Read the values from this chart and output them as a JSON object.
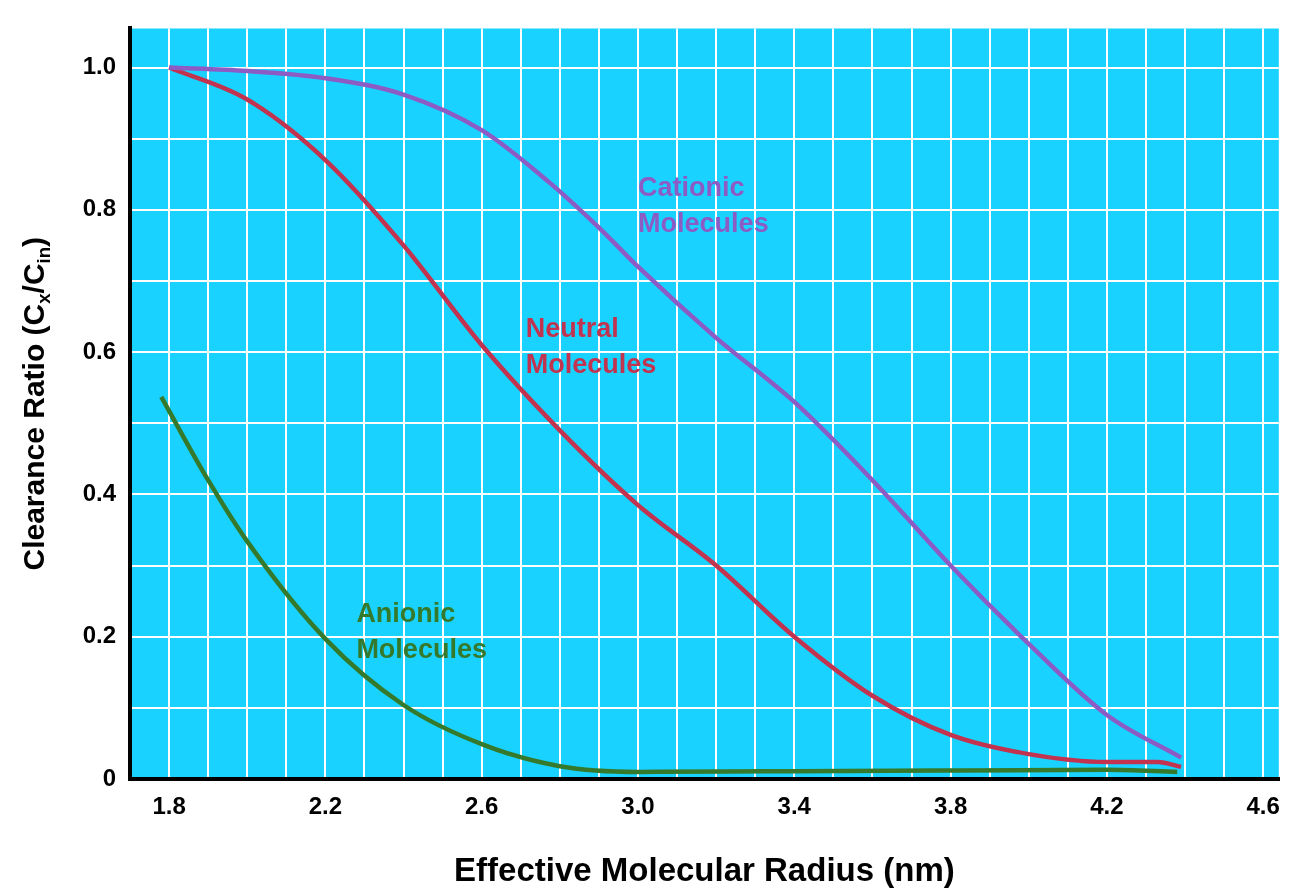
{
  "chart_data": {
    "type": "line",
    "xlabel": "Effective Molecular Radius (nm)",
    "ylabel": "Clearance Ratio (C$_{x}$/C$_{in}$)",
    "xlim": [
      1.7,
      4.64
    ],
    "ylim": [
      0,
      1.055
    ],
    "xticks": [
      1.8,
      {
        "value": 1.9,
        "label": null
      },
      {
        "value": 2.0,
        "label": null
      },
      {
        "value": 2.1,
        "label": null
      },
      2.2,
      {
        "value": 2.3,
        "label": null
      },
      {
        "value": 2.4,
        "label": null
      },
      {
        "value": 2.5,
        "label": null
      },
      2.6,
      {
        "value": 2.7,
        "label": null
      },
      {
        "value": 2.8,
        "label": null
      },
      {
        "value": 2.9,
        "label": null
      },
      {
        "value": 3.0,
        "label": "3.0"
      },
      {
        "value": 3.1,
        "label": null
      },
      {
        "value": 3.2,
        "label": null
      },
      {
        "value": 3.3,
        "label": null
      },
      3.4,
      {
        "value": 3.5,
        "label": null
      },
      {
        "value": 3.6,
        "label": null
      },
      {
        "value": 3.7,
        "label": null
      },
      3.8,
      {
        "value": 3.9,
        "label": null
      },
      {
        "value": 4.0,
        "label": null
      },
      {
        "value": 4.1,
        "label": null
      },
      4.2,
      {
        "value": 4.3,
        "label": null
      },
      {
        "value": 4.4,
        "label": null
      },
      {
        "value": 4.5,
        "label": null
      },
      4.6
    ],
    "yticks": [
      0,
      {
        "value": 0.1,
        "label": null
      },
      0.2,
      {
        "value": 0.3,
        "label": null
      },
      0.4,
      {
        "value": 0.5,
        "label": null
      },
      0.6,
      {
        "value": 0.7,
        "label": null
      },
      0.8,
      {
        "value": 0.9,
        "label": null
      },
      {
        "value": 1.0,
        "label": "1.0"
      }
    ],
    "grid": true,
    "marker": "none",
    "line_style": "solid",
    "series": [
      {
        "name": "Cationic Molecules",
        "color": "#8c5cc4",
        "x": [
          1.8,
          2.0,
          2.2,
          2.4,
          2.6,
          2.77,
          2.9,
          3.0,
          3.2,
          3.4,
          3.6,
          3.8,
          4.0,
          4.2,
          4.39
        ],
        "values": [
          1.0,
          0.995,
          0.985,
          0.962,
          0.912,
          0.84,
          0.775,
          0.72,
          0.62,
          0.53,
          0.42,
          0.3,
          0.19,
          0.09,
          0.03
        ]
      },
      {
        "name": "Neutral Molecules",
        "color": "#c2334f",
        "x": [
          1.8,
          2.0,
          2.2,
          2.4,
          2.6,
          2.8,
          3.0,
          3.2,
          3.4,
          3.6,
          3.8,
          4.0,
          4.2,
          4.33,
          4.39
        ],
        "values": [
          1.0,
          0.955,
          0.87,
          0.75,
          0.61,
          0.49,
          0.385,
          0.3,
          0.2,
          0.117,
          0.062,
          0.035,
          0.024,
          0.024,
          0.017
        ]
      },
      {
        "name": "Anionic Molecules",
        "color": "#357a2c",
        "x": [
          1.78,
          1.9,
          2.0,
          2.2,
          2.4,
          2.6,
          2.8,
          3.0,
          3.4,
          3.8,
          4.2,
          4.38
        ],
        "values": [
          0.537,
          0.42,
          0.334,
          0.197,
          0.104,
          0.049,
          0.018,
          0.01,
          0.011,
          0.012,
          0.013,
          0.01
        ]
      }
    ]
  }
}
